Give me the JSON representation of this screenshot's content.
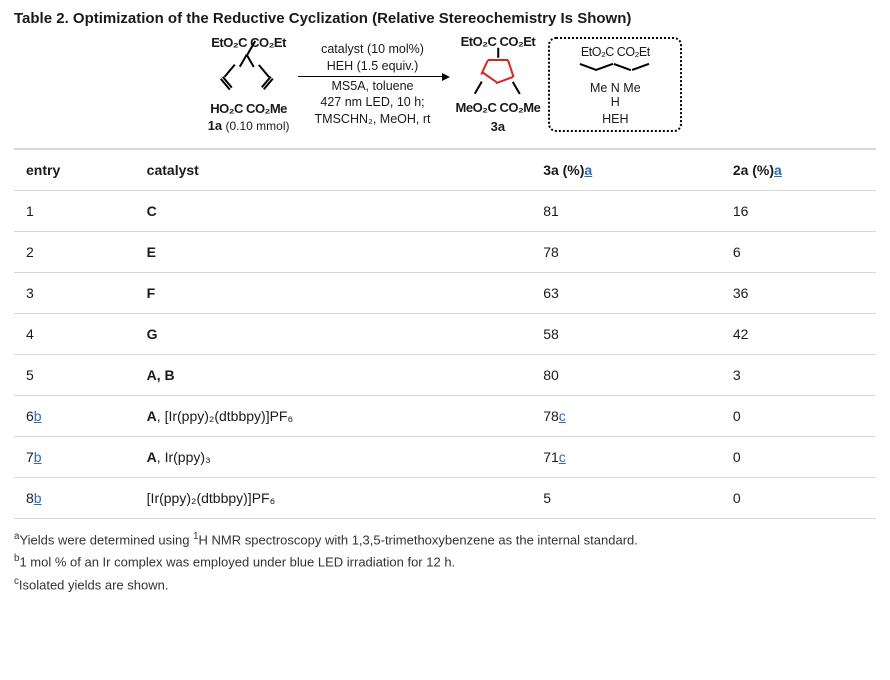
{
  "title": "Table 2. Optimization of the Reductive Cyclization (Relative Stereochemistry Is Shown)",
  "scheme": {
    "sm_top": "EtO₂C  CO₂Et",
    "sm_bottom1": "HO₂C  CO₂Me",
    "sm_label": "1a",
    "sm_amount": "(0.10 mmol)",
    "cond_top1": "catalyst (10 mol%)",
    "cond_top2": "HEH (1.5 equiv.)",
    "cond_bot1": "MS5A, toluene",
    "cond_bot2": "427 nm LED, 10 h;",
    "cond_bot3": "TMSCHN₂, MeOH, rt",
    "prod_top": "EtO₂C  CO₂Et",
    "prod_bottom": "MeO₂C  CO₂Me",
    "prod_label": "3a",
    "heh_top": "EtO₂C        CO₂Et",
    "heh_mid1": "Me     N     Me",
    "heh_mid2": "H",
    "heh_label": "HEH"
  },
  "columns": {
    "entry": "entry",
    "catalyst": "catalyst",
    "c3a": "3a (%)",
    "c2a": "2a (%)",
    "fn_a": "a"
  },
  "rows": [
    {
      "entry": "1",
      "entry_fn": "",
      "catalyst_bold": "C",
      "catalyst_rest": "",
      "y3a": "81",
      "y3a_fn": "",
      "y2a": "16"
    },
    {
      "entry": "2",
      "entry_fn": "",
      "catalyst_bold": "E",
      "catalyst_rest": "",
      "y3a": "78",
      "y3a_fn": "",
      "y2a": "6"
    },
    {
      "entry": "3",
      "entry_fn": "",
      "catalyst_bold": "F",
      "catalyst_rest": "",
      "y3a": "63",
      "y3a_fn": "",
      "y2a": "36"
    },
    {
      "entry": "4",
      "entry_fn": "",
      "catalyst_bold": "G",
      "catalyst_rest": "",
      "y3a": "58",
      "y3a_fn": "",
      "y2a": "42"
    },
    {
      "entry": "5",
      "entry_fn": "",
      "catalyst_bold": "A, B",
      "catalyst_rest": "",
      "y3a": "80",
      "y3a_fn": "",
      "y2a": "3"
    },
    {
      "entry": "6",
      "entry_fn": "b",
      "catalyst_bold": "A",
      "catalyst_rest": ", [Ir(ppy)₂(dtbbpy)]PF₆",
      "y3a": "78",
      "y3a_fn": "c",
      "y2a": "0"
    },
    {
      "entry": "7",
      "entry_fn": "b",
      "catalyst_bold": "A",
      "catalyst_rest": ", Ir(ppy)₃",
      "y3a": "71",
      "y3a_fn": "c",
      "y2a": "0"
    },
    {
      "entry": "8",
      "entry_fn": "b",
      "catalyst_bold": "",
      "catalyst_rest": "[Ir(ppy)₂(dtbbpy)]PF₆",
      "y3a": "5",
      "y3a_fn": "",
      "y2a": "0"
    }
  ],
  "footnotes": {
    "a_pre": "Yields were determined using ",
    "a_sup": "1",
    "a_post": "H NMR spectroscopy with 1,3,5-trimethoxybenzene as the internal standard.",
    "b": "1 mol % of an Ir complex was employed under blue LED irradiation for 12 h.",
    "c": "Isolated yields are shown."
  }
}
